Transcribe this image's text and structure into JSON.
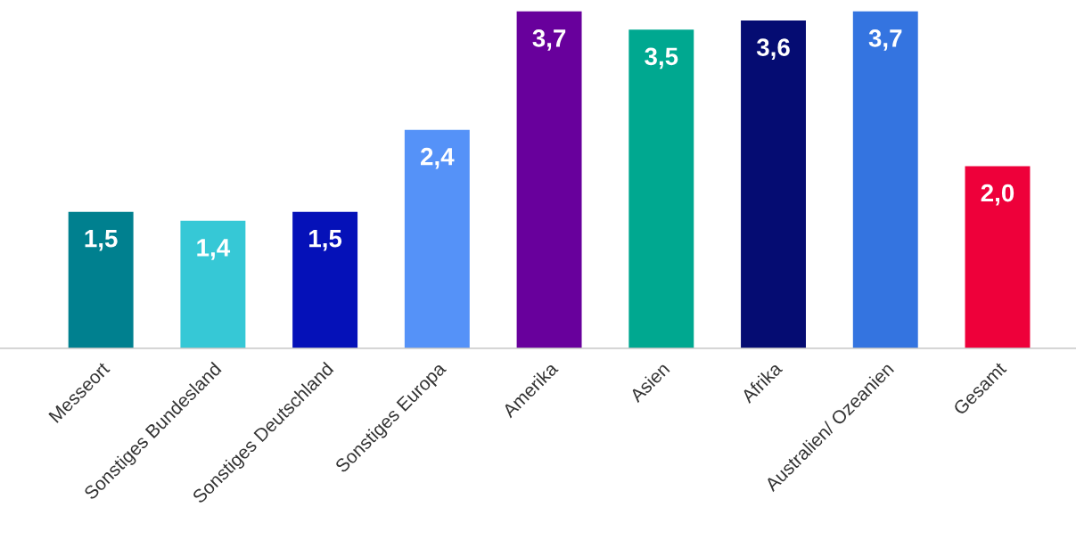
{
  "chart_data": {
    "type": "bar",
    "categories": [
      "Messeort",
      "Sonstiges Bundesland",
      "Sonstiges Deutschland",
      "Sonstiges Europa",
      "Amerika",
      "Asien",
      "Afrika",
      "Australien/ Ozeanien",
      "Gesamt"
    ],
    "values": [
      1.5,
      1.4,
      1.5,
      2.4,
      3.7,
      3.5,
      3.6,
      3.7,
      2.0
    ],
    "value_labels": [
      "1,5",
      "1,4",
      "1,5",
      "2,4",
      "3,7",
      "3,5",
      "3,6",
      "3,7",
      "2,0"
    ],
    "colors": [
      "#00808f",
      "#36c8d6",
      "#0511b8",
      "#5592f8",
      "#68009c",
      "#00a890",
      "#050c72",
      "#3474e0",
      "#ee003a"
    ],
    "tick_labels": "x",
    "grid": false
  }
}
